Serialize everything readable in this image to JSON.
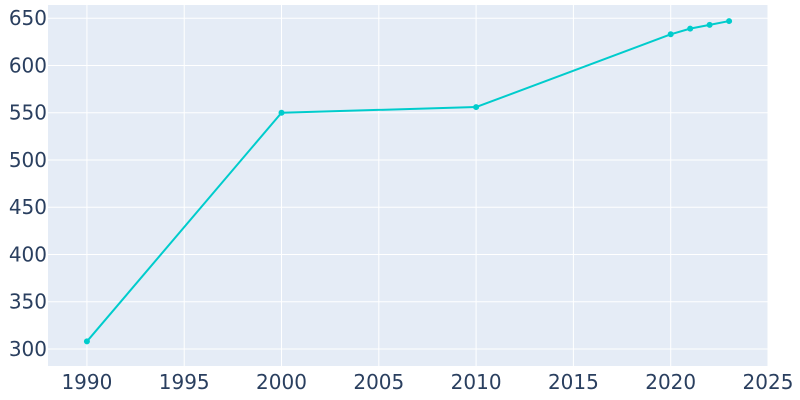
{
  "chart_data": {
    "type": "line",
    "title": "",
    "xlabel": "",
    "ylabel": "",
    "xlim": [
      1988,
      2025
    ],
    "ylim": [
      282,
      664
    ],
    "grid": true,
    "x_ticks": [
      1990,
      1995,
      2000,
      2005,
      2010,
      2015,
      2020,
      2025
    ],
    "y_ticks": [
      300,
      350,
      400,
      450,
      500,
      550,
      600,
      650
    ],
    "series": [
      {
        "x": [
          1990,
          2000,
          2010,
          2020,
          2021,
          2022,
          2023
        ],
        "values": [
          308,
          550,
          556,
          633,
          639,
          643,
          647
        ]
      }
    ],
    "colors": {
      "line": "#00cccc",
      "plot_bg": "#e5ecf6",
      "grid": "#ffffff",
      "tick_text": "#2a3f5f"
    }
  }
}
